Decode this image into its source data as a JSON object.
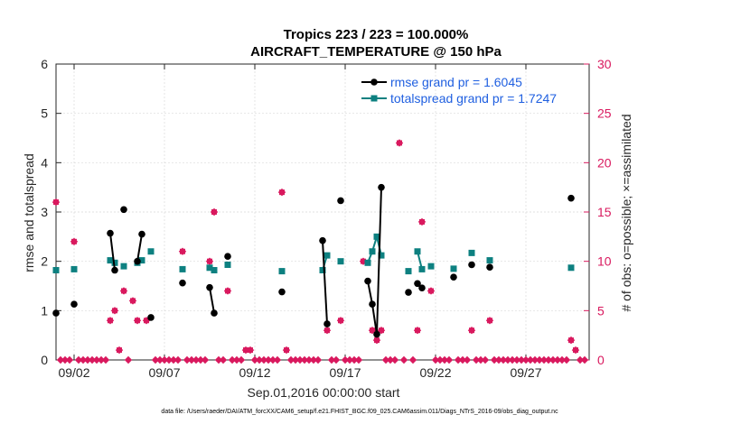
{
  "colors": {
    "rmse": "#000000",
    "spread": "#0d8080",
    "obs": "#d9195e",
    "legend_text": "#1f5fe0",
    "axis": "#262626",
    "grid": "#d9d9d9"
  },
  "footer": "data file: /Users/raeder/DAI/ATM_forcXX/CAM6_setup/f.e21.FHIST_BGC.f09_025.CAM6assim.011/Diags_NTrS_2016-09/obs_diag_output.nc",
  "chart_data": {
    "type": "line",
    "title": "Tropics 223 / 223 = 100.000%",
    "subtitle": "AIRCRAFT_TEMPERATURE @ 150 hPa",
    "xlabel": "Sep.01,2016 00:00:00 start",
    "ylabel": "rmse and totalspread",
    "ylabel_right": "# of obs: o=possible; ×=assimilated",
    "xlim": [
      0.0,
      29.5
    ],
    "ylim": [
      0,
      6
    ],
    "ylim_right": [
      0,
      30
    ],
    "x_ticks": [
      1,
      6,
      11,
      16,
      21,
      26
    ],
    "x_tick_labels": [
      "09/02",
      "09/07",
      "09/12",
      "09/17",
      "09/22",
      "09/27"
    ],
    "y_ticks": [
      0,
      1,
      2,
      3,
      4,
      5,
      6
    ],
    "y_ticks_right": [
      0,
      5,
      10,
      15,
      20,
      25,
      30
    ],
    "legend": [
      "rmse grand pr = 1.6045",
      "totalspread grand pr = 1.7247"
    ],
    "series": [
      {
        "name": "rmse",
        "points": [
          [
            0.0,
            0.95
          ],
          [
            1.0,
            1.13
          ],
          [
            3.0,
            2.57
          ],
          [
            3.25,
            1.82
          ],
          [
            3.75,
            3.05
          ],
          [
            4.5,
            2.0
          ],
          [
            4.75,
            2.55
          ],
          [
            5.25,
            0.86
          ],
          [
            7.0,
            1.56
          ],
          [
            8.5,
            1.47
          ],
          [
            8.75,
            0.95
          ],
          [
            9.5,
            2.1
          ],
          [
            12.5,
            1.38
          ],
          [
            14.75,
            2.42
          ],
          [
            15.0,
            0.73
          ],
          [
            15.75,
            3.23
          ],
          [
            17.25,
            1.6
          ],
          [
            17.5,
            1.13
          ],
          [
            17.75,
            0.52
          ],
          [
            18.0,
            3.5
          ],
          [
            19.5,
            1.37
          ],
          [
            20.0,
            1.55
          ],
          [
            20.25,
            1.46
          ],
          [
            22.0,
            1.68
          ],
          [
            23.0,
            1.93
          ],
          [
            24.0,
            1.88
          ],
          [
            28.5,
            3.28
          ]
        ],
        "segments": [
          [
            3.0,
            3.25
          ],
          [
            4.5,
            4.75
          ],
          [
            8.5,
            8.75
          ],
          [
            14.75,
            15.0
          ],
          [
            17.25,
            17.5
          ],
          [
            17.5,
            17.75
          ],
          [
            17.75,
            18.0
          ],
          [
            20.0,
            20.25
          ]
        ]
      },
      {
        "name": "totalspread",
        "points": [
          [
            0.0,
            1.82
          ],
          [
            1.0,
            1.84
          ],
          [
            3.0,
            2.02
          ],
          [
            3.25,
            1.97
          ],
          [
            3.75,
            1.9
          ],
          [
            4.5,
            1.97
          ],
          [
            4.75,
            2.02
          ],
          [
            5.25,
            2.2
          ],
          [
            7.0,
            1.84
          ],
          [
            8.5,
            1.87
          ],
          [
            8.75,
            1.82
          ],
          [
            9.5,
            1.93
          ],
          [
            12.5,
            1.8
          ],
          [
            14.75,
            1.82
          ],
          [
            15.0,
            2.12
          ],
          [
            15.75,
            2.0
          ],
          [
            17.25,
            1.97
          ],
          [
            17.5,
            2.2
          ],
          [
            17.75,
            2.5
          ],
          [
            18.0,
            2.12
          ],
          [
            19.5,
            1.8
          ],
          [
            20.0,
            2.2
          ],
          [
            20.25,
            1.84
          ],
          [
            20.75,
            1.9
          ],
          [
            22.0,
            1.85
          ],
          [
            23.0,
            2.17
          ],
          [
            24.0,
            2.02
          ],
          [
            28.5,
            1.87
          ]
        ],
        "segments": [
          [
            3.0,
            3.25
          ],
          [
            4.5,
            4.75
          ],
          [
            8.5,
            8.75
          ],
          [
            14.75,
            15.0
          ],
          [
            17.25,
            17.5
          ],
          [
            17.5,
            17.75
          ],
          [
            17.75,
            18.0
          ],
          [
            20.0,
            20.25
          ]
        ]
      },
      {
        "name": "obs_possible",
        "axis": "right",
        "points": [
          [
            0.0,
            16
          ],
          [
            1.0,
            12
          ],
          [
            3.0,
            4
          ],
          [
            3.25,
            5
          ],
          [
            3.5,
            1
          ],
          [
            3.75,
            7
          ],
          [
            4.25,
            6
          ],
          [
            4.5,
            4
          ],
          [
            5.0,
            4
          ],
          [
            7.0,
            11
          ],
          [
            8.5,
            10
          ],
          [
            8.75,
            15
          ],
          [
            9.5,
            7
          ],
          [
            10.5,
            1
          ],
          [
            10.75,
            1
          ],
          [
            12.5,
            17
          ],
          [
            12.75,
            1
          ],
          [
            15.0,
            3
          ],
          [
            15.75,
            4
          ],
          [
            17.0,
            10
          ],
          [
            17.5,
            3
          ],
          [
            17.75,
            2
          ],
          [
            18.0,
            3
          ],
          [
            19.0,
            22
          ],
          [
            20.0,
            3
          ],
          [
            20.25,
            14
          ],
          [
            20.75,
            7
          ],
          [
            23.0,
            3
          ],
          [
            24.0,
            4
          ],
          [
            28.5,
            2
          ],
          [
            28.75,
            1
          ]
        ]
      },
      {
        "name": "obs_assimilated",
        "axis": "right",
        "points": [
          [
            0.0,
            16
          ],
          [
            1.0,
            12
          ],
          [
            3.0,
            4
          ],
          [
            3.25,
            5
          ],
          [
            3.5,
            1
          ],
          [
            3.75,
            7
          ],
          [
            4.25,
            6
          ],
          [
            4.5,
            4
          ],
          [
            5.0,
            4
          ],
          [
            7.0,
            11
          ],
          [
            8.5,
            10
          ],
          [
            8.75,
            15
          ],
          [
            9.5,
            7
          ],
          [
            10.5,
            1
          ],
          [
            10.75,
            1
          ],
          [
            12.5,
            17
          ],
          [
            12.75,
            1
          ],
          [
            15.0,
            3
          ],
          [
            15.75,
            4
          ],
          [
            17.0,
            10
          ],
          [
            17.5,
            3
          ],
          [
            17.75,
            2
          ],
          [
            18.0,
            3
          ],
          [
            19.0,
            22
          ],
          [
            20.0,
            3
          ],
          [
            20.25,
            14
          ],
          [
            20.75,
            7
          ],
          [
            23.0,
            3
          ],
          [
            24.0,
            4
          ],
          [
            28.5,
            2
          ],
          [
            28.75,
            1
          ]
        ]
      }
    ],
    "zero_obs_x": [
      0.25,
      0.5,
      0.75,
      1.25,
      1.5,
      1.75,
      2.0,
      2.25,
      2.5,
      2.75,
      4.0,
      5.5,
      5.75,
      6.0,
      6.25,
      6.5,
      6.75,
      7.25,
      7.5,
      7.75,
      8.0,
      8.25,
      9.0,
      9.25,
      9.75,
      10.0,
      10.25,
      11.0,
      11.25,
      11.5,
      11.75,
      12.0,
      12.25,
      13.0,
      13.25,
      13.5,
      13.75,
      14.0,
      14.25,
      14.5,
      15.25,
      15.5,
      16.0,
      16.25,
      16.5,
      16.75,
      18.25,
      18.5,
      18.75,
      19.25,
      19.75,
      21.0,
      21.25,
      21.5,
      21.75,
      22.25,
      22.5,
      22.75,
      23.25,
      23.5,
      23.75,
      24.25,
      24.5,
      24.75,
      25.0,
      25.25,
      25.5,
      25.75,
      26.0,
      26.25,
      26.5,
      26.75,
      27.0,
      27.25,
      27.5,
      27.75,
      28.0,
      28.25,
      29.0,
      29.25
    ]
  }
}
